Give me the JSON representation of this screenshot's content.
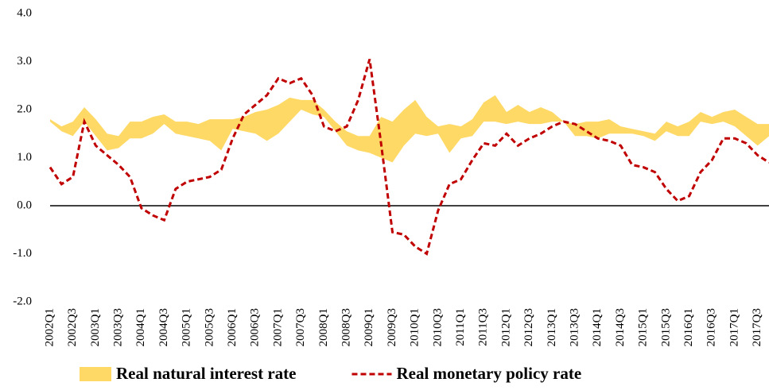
{
  "chart_data": {
    "type": "line",
    "categories": [
      "2002Q1",
      null,
      "2002Q3",
      null,
      "2003Q1",
      null,
      "2003Q3",
      null,
      "2004Q1",
      null,
      "2004Q3",
      null,
      "2005Q1",
      null,
      "2005Q3",
      null,
      "2006Q1",
      null,
      "2006Q3",
      null,
      "2007Q1",
      null,
      "2007Q3",
      null,
      "2008Q1",
      null,
      "2008Q3",
      null,
      "2009Q1",
      null,
      "2009Q3",
      null,
      "2010Q1",
      null,
      "2010Q3",
      null,
      "2011Q1",
      null,
      "2011Q3",
      null,
      "2012Q1",
      null,
      "2012Q3",
      null,
      "2013Q1",
      null,
      "2013Q3",
      null,
      "2014Q1",
      null,
      "2014Q3",
      null,
      "2015Q1",
      null,
      "2015Q3",
      null,
      "2016Q1",
      null,
      "2016Q3",
      null,
      "2017Q1",
      null,
      "2017Q3",
      null
    ],
    "series": [
      {
        "name": "Real natural interest rate",
        "color": "#ffd966",
        "style": "band",
        "high": [
          1.8,
          1.65,
          1.75,
          2.05,
          1.8,
          1.5,
          1.45,
          1.75,
          1.75,
          1.85,
          1.9,
          1.75,
          1.75,
          1.7,
          1.8,
          1.8,
          1.8,
          1.85,
          1.95,
          2.0,
          2.1,
          2.25,
          2.2,
          2.2,
          2.0,
          1.75,
          1.55,
          1.45,
          1.45,
          1.85,
          1.75,
          2.0,
          2.2,
          1.85,
          1.65,
          1.7,
          1.65,
          1.8,
          2.15,
          2.3,
          1.95,
          2.1,
          1.95,
          2.05,
          1.95,
          1.75,
          1.7,
          1.75,
          1.75,
          1.8,
          1.65,
          1.6,
          1.55,
          1.5,
          1.75,
          1.65,
          1.75,
          1.95,
          1.85,
          1.95,
          2.0,
          1.85,
          1.7,
          1.7
        ],
        "low": [
          1.75,
          1.55,
          1.45,
          1.75,
          1.45,
          1.15,
          1.2,
          1.4,
          1.4,
          1.5,
          1.7,
          1.5,
          1.45,
          1.4,
          1.35,
          1.15,
          1.6,
          1.55,
          1.5,
          1.35,
          1.5,
          1.75,
          2.0,
          1.9,
          1.85,
          1.55,
          1.25,
          1.15,
          1.1,
          1.0,
          0.9,
          1.25,
          1.5,
          1.45,
          1.5,
          1.1,
          1.4,
          1.45,
          1.75,
          1.75,
          1.7,
          1.75,
          1.7,
          1.7,
          1.75,
          1.75,
          1.45,
          1.45,
          1.4,
          1.5,
          1.5,
          1.5,
          1.45,
          1.35,
          1.55,
          1.45,
          1.45,
          1.75,
          1.7,
          1.75,
          1.65,
          1.45,
          1.25,
          1.45
        ]
      },
      {
        "name": "Real monetary policy rate",
        "color": "#c00000",
        "style": "dashed",
        "values": [
          0.8,
          0.45,
          0.6,
          1.75,
          1.25,
          1.05,
          0.85,
          0.6,
          -0.05,
          -0.2,
          -0.3,
          0.35,
          0.5,
          0.55,
          0.6,
          0.75,
          1.4,
          1.9,
          2.1,
          2.3,
          2.65,
          2.55,
          2.65,
          2.3,
          1.65,
          1.55,
          1.65,
          2.2,
          3.05,
          1.3,
          -0.55,
          -0.6,
          -0.85,
          -1.0,
          -0.1,
          0.45,
          0.55,
          0.95,
          1.3,
          1.25,
          1.5,
          1.25,
          1.4,
          1.5,
          1.65,
          1.75,
          1.7,
          1.55,
          1.4,
          1.35,
          1.25,
          0.85,
          0.8,
          0.7,
          0.35,
          0.1,
          0.2,
          0.7,
          0.95,
          1.4,
          1.4,
          1.3,
          1.05,
          0.9
        ]
      }
    ],
    "ylim": [
      -2,
      4
    ],
    "yticks": [
      {
        "value": -2,
        "label": "-2.0"
      },
      {
        "value": -1,
        "label": "-1.0"
      },
      {
        "value": 0,
        "label": "0.0"
      },
      {
        "value": 1,
        "label": "1.0"
      },
      {
        "value": 2,
        "label": "2.0"
      },
      {
        "value": 3,
        "label": "3.0"
      },
      {
        "value": 4,
        "label": "4.0"
      }
    ],
    "legend": "bottom"
  }
}
